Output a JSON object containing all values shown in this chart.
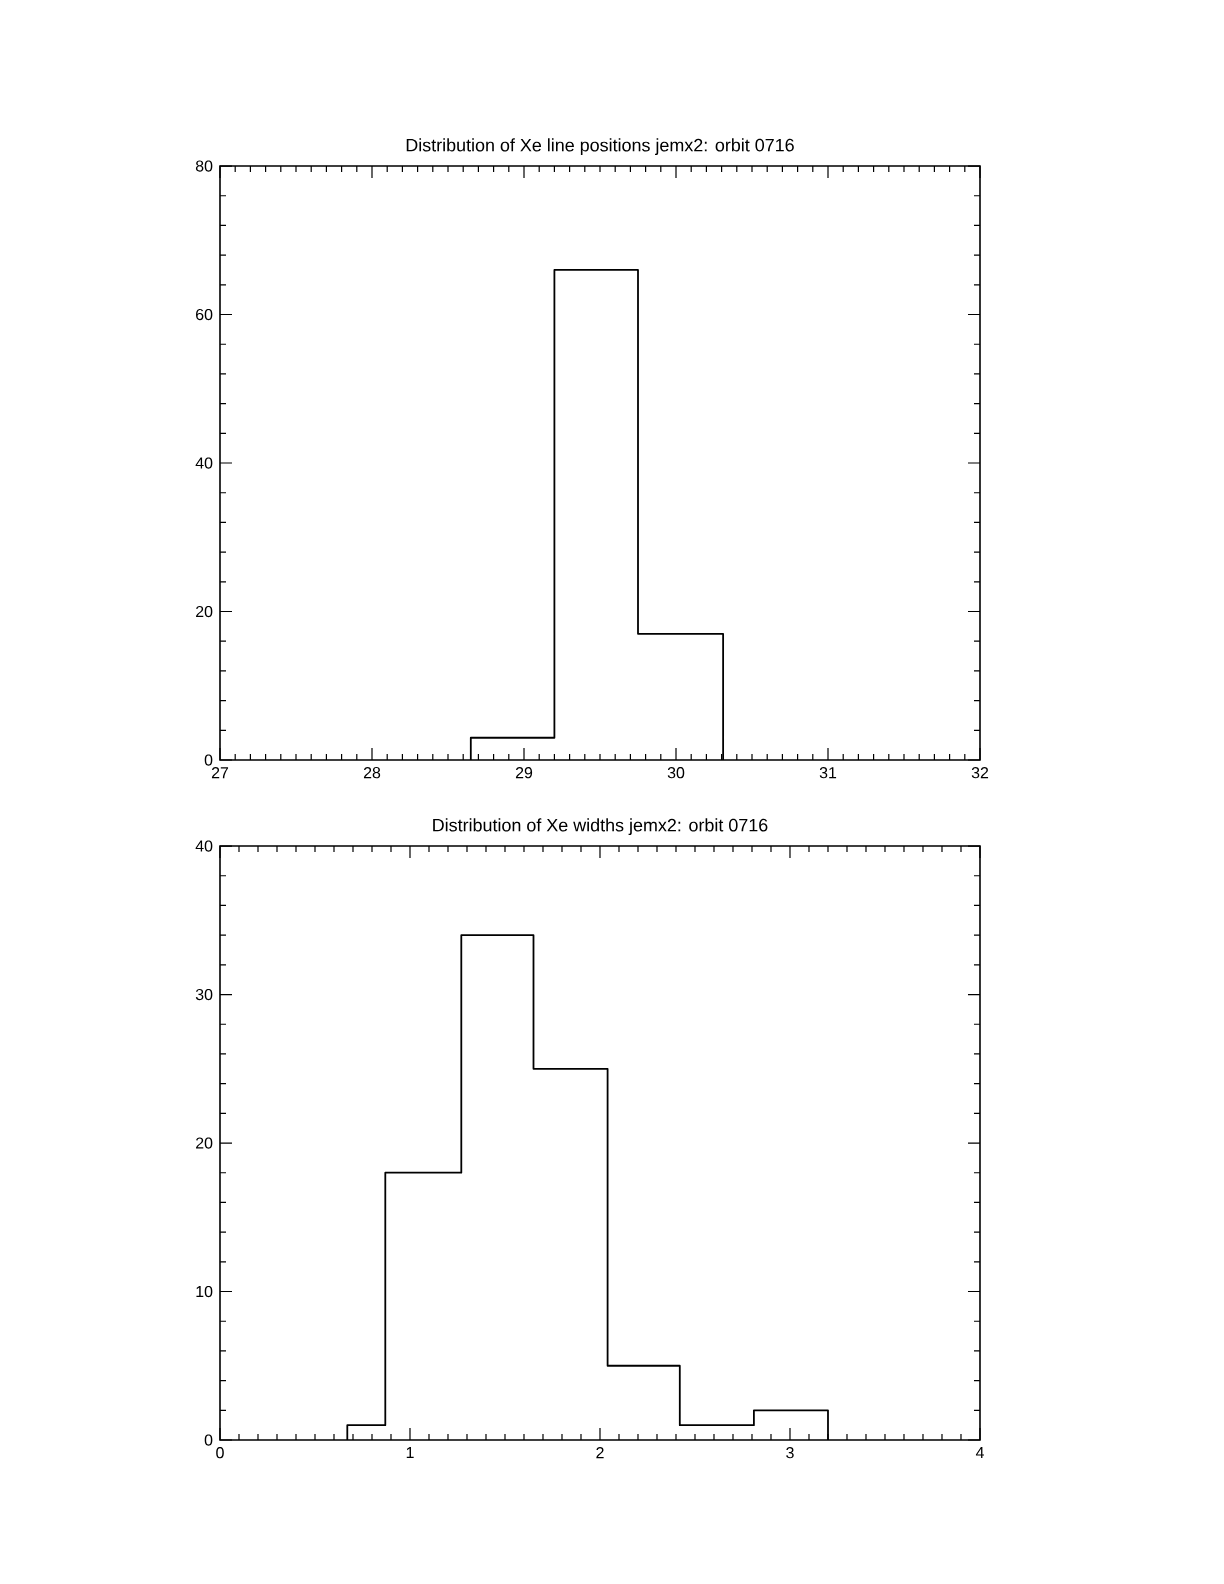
{
  "chart_data": [
    {
      "type": "histogram",
      "title": "Distribution of Xe line positions jemx2: orbit 0716",
      "bins": [
        28.65,
        29.2,
        29.75,
        30.31
      ],
      "values": [
        3,
        66,
        17
      ],
      "color": "#000000",
      "xlim": [
        27,
        32
      ],
      "ylim": [
        0,
        80
      ],
      "xticks": [
        27,
        28,
        29,
        30,
        31,
        32
      ],
      "yticks": [
        0,
        20,
        40,
        60,
        80
      ],
      "grid": false
    },
    {
      "type": "histogram",
      "title": "Distribution of Xe widths jemx2: orbit 0716",
      "bins": [
        0.67,
        0.87,
        1.27,
        1.65,
        2.04,
        2.42,
        2.81,
        3.2
      ],
      "values": [
        1,
        18,
        34,
        25,
        5,
        1,
        2
      ],
      "color": "#000000",
      "xlim": [
        0,
        4
      ],
      "ylim": [
        0,
        40
      ],
      "xticks": [
        0,
        1,
        2,
        3,
        4
      ],
      "yticks": [
        0,
        10,
        20,
        30,
        40
      ],
      "grid": false
    }
  ]
}
